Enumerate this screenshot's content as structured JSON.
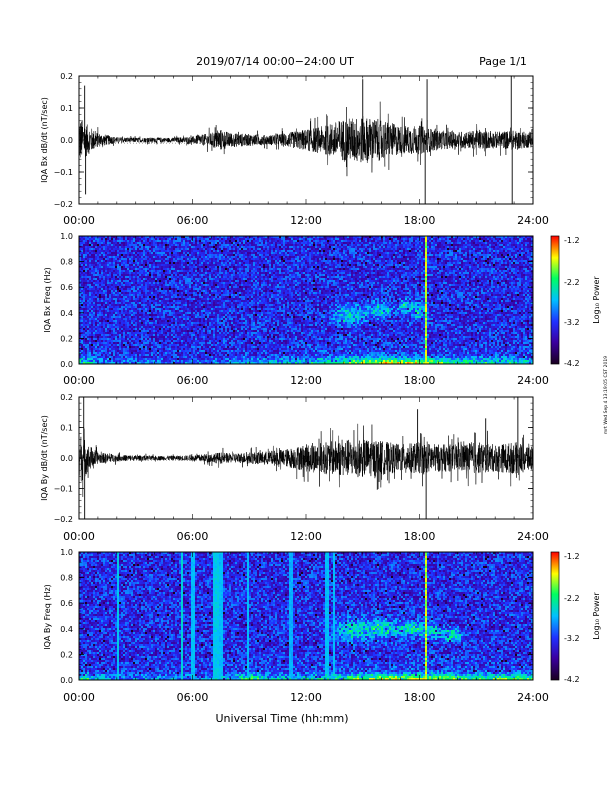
{
  "header": {
    "title": "2019/07/14  00:00−24:00 UT",
    "page": "Page 1/1"
  },
  "x_axis": {
    "label": "Universal Time (hh:mm)",
    "ticks": [
      "00:00",
      "06:00",
      "12:00",
      "18:00",
      "24:00"
    ]
  },
  "credit": "mrt Wed Sep 4 13:19:05 CST 2019",
  "colors": {
    "trace": "#000000",
    "spectrogram_scale": [
      "#1a0020",
      "#3a00a0",
      "#2030ff",
      "#00c0ff",
      "#00ff60",
      "#ffff00",
      "#ff0000"
    ]
  },
  "chart_data": [
    {
      "type": "line",
      "ylabel": "IQA Bx dB/dt (nT/sec)",
      "ylim": [
        -0.2,
        0.2
      ],
      "yticks": [
        "0.2",
        "0.1",
        "0.0",
        "−0.1",
        "−0.2"
      ],
      "xlim": [
        0,
        24
      ],
      "envelope": {
        "t": [
          0,
          0.5,
          1,
          2,
          3,
          4,
          5,
          6,
          7,
          7.5,
          8,
          9,
          10,
          11,
          12,
          13,
          14,
          15,
          16,
          17,
          18,
          19,
          20,
          21,
          22,
          23,
          24
        ],
        "amp": [
          0.1,
          0.06,
          0.03,
          0.012,
          0.01,
          0.01,
          0.01,
          0.015,
          0.03,
          0.045,
          0.03,
          0.025,
          0.02,
          0.03,
          0.045,
          0.06,
          0.09,
          0.1,
          0.085,
          0.06,
          0.06,
          0.04,
          0.035,
          0.04,
          0.035,
          0.04,
          0.03
        ]
      },
      "spikes": [
        {
          "t": 0.3,
          "v": 0.17
        },
        {
          "t": 0.35,
          "v": -0.17
        },
        {
          "t": 15.0,
          "v": 0.19
        },
        {
          "t": 18.3,
          "v": -0.2
        },
        {
          "t": 18.4,
          "v": 0.19
        },
        {
          "t": 22.85,
          "v": 0.21
        },
        {
          "t": 22.9,
          "v": -0.2
        }
      ]
    },
    {
      "type": "heatmap",
      "ylabel": "IQA Bx Freq (Hz)",
      "ylim": [
        0.0,
        1.0
      ],
      "yticks": [
        "1.0",
        "0.8",
        "0.6",
        "0.4",
        "0.2",
        "0.0"
      ],
      "xlim": [
        0,
        24
      ],
      "colorbar": {
        "label": "Log₁₀ Power",
        "ticks": [
          "-1.2",
          "-2.2",
          "-3.2",
          "-4.2"
        ],
        "range": [
          -4.2,
          -1.2
        ]
      },
      "features": {
        "low_band": [
          0.5,
          0.2,
          0.15,
          0.15,
          0.15,
          0.15,
          0.15,
          0.15,
          0.2,
          0.3,
          0.3,
          0.3,
          0.35,
          0.5,
          0.6,
          0.7,
          0.75,
          0.75,
          0.7,
          0.6,
          0.5,
          0.45,
          0.45,
          0.45,
          0.4
        ],
        "blobs": [
          {
            "t": 14.3,
            "f": 0.38,
            "dt": 0.8,
            "df": 0.08
          },
          {
            "t": 15.9,
            "f": 0.42,
            "dt": 0.6,
            "df": 0.06
          },
          {
            "t": 17.3,
            "f": 0.45,
            "dt": 0.4,
            "df": 0.05
          },
          {
            "t": 18.0,
            "f": 0.4,
            "dt": 0.4,
            "df": 0.06
          }
        ],
        "streaks": [
          {
            "t": 18.35,
            "strength": 1.0
          }
        ]
      }
    },
    {
      "type": "line",
      "ylabel": "IQA By dB/dt (nT/sec)",
      "ylim": [
        -0.2,
        0.2
      ],
      "yticks": [
        "0.2",
        "0.1",
        "0.0",
        "−0.1",
        "−0.2"
      ],
      "xlim": [
        0,
        24
      ],
      "envelope": {
        "t": [
          0,
          0.5,
          1,
          2,
          3,
          4,
          5,
          6,
          7,
          7.5,
          8,
          9,
          10,
          11,
          12,
          13,
          14,
          15,
          16,
          17,
          18,
          19,
          20,
          21,
          22,
          23,
          24
        ],
        "amp": [
          0.12,
          0.06,
          0.025,
          0.015,
          0.012,
          0.01,
          0.01,
          0.012,
          0.02,
          0.025,
          0.02,
          0.025,
          0.03,
          0.04,
          0.06,
          0.07,
          0.08,
          0.085,
          0.075,
          0.06,
          0.07,
          0.06,
          0.06,
          0.07,
          0.06,
          0.07,
          0.06
        ]
      },
      "spikes": [
        {
          "t": 0.25,
          "v": 0.22
        },
        {
          "t": 0.3,
          "v": -0.21
        },
        {
          "t": 17.9,
          "v": 0.16
        },
        {
          "t": 18.35,
          "v": -0.21
        },
        {
          "t": 23.2,
          "v": 0.2
        },
        {
          "t": 21.5,
          "v": 0.13
        }
      ]
    },
    {
      "type": "heatmap",
      "ylabel": "IQA By Freq (Hz)",
      "ylim": [
        0.0,
        1.0
      ],
      "yticks": [
        "1.0",
        "0.8",
        "0.6",
        "0.4",
        "0.2",
        "0.0"
      ],
      "xlim": [
        0,
        24
      ],
      "colorbar": {
        "label": "Log₁₀ Power",
        "ticks": [
          "-1.2",
          "-2.2",
          "-3.2",
          "-4.2"
        ],
        "range": [
          -4.2,
          -1.2
        ]
      },
      "features": {
        "low_band": [
          0.55,
          0.3,
          0.2,
          0.2,
          0.2,
          0.2,
          0.2,
          0.25,
          0.3,
          0.55,
          0.35,
          0.3,
          0.35,
          0.45,
          0.55,
          0.65,
          0.7,
          0.7,
          0.7,
          0.65,
          0.6,
          0.55,
          0.55,
          0.6,
          0.5
        ],
        "blobs": [
          {
            "t": 14.3,
            "f": 0.38,
            "dt": 0.9,
            "df": 0.09
          },
          {
            "t": 16.0,
            "f": 0.4,
            "dt": 1.0,
            "df": 0.08
          },
          {
            "t": 17.6,
            "f": 0.4,
            "dt": 0.6,
            "df": 0.06
          },
          {
            "t": 18.6,
            "f": 0.38,
            "dt": 0.5,
            "df": 0.06
          },
          {
            "t": 19.7,
            "f": 0.35,
            "dt": 0.6,
            "df": 0.05
          }
        ],
        "streaks": [
          {
            "t": 2.0,
            "strength": 0.4
          },
          {
            "t": 5.4,
            "strength": 0.45
          },
          {
            "t": 6.0,
            "strength": 0.35
          },
          {
            "t": 7.1,
            "strength": 0.4
          },
          {
            "t": 7.3,
            "strength": 0.4
          },
          {
            "t": 7.5,
            "strength": 0.35
          },
          {
            "t": 8.9,
            "strength": 0.35
          },
          {
            "t": 11.2,
            "strength": 0.3
          },
          {
            "t": 13.1,
            "strength": 0.35
          },
          {
            "t": 13.5,
            "strength": 0.35
          },
          {
            "t": 18.35,
            "strength": 1.0
          }
        ]
      }
    }
  ]
}
